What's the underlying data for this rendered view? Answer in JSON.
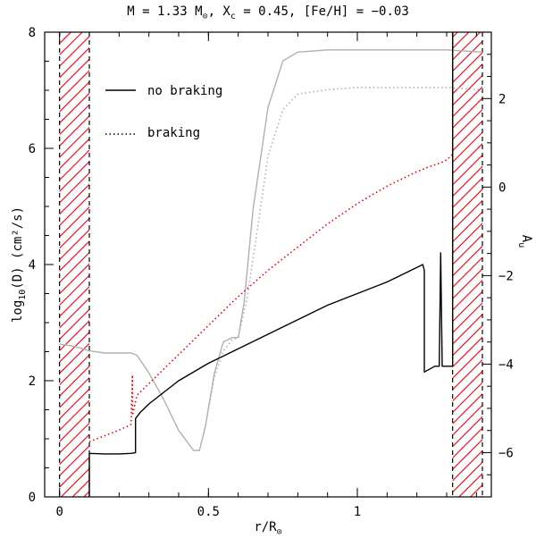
{
  "chart_data": {
    "type": "line",
    "title": {
      "prefix": "M = 1.33 M",
      "mass_sub": "⊙",
      "xc_part": ", X",
      "xc_sub": "c",
      "rest": " = 0.45, [Fe/H] = −0.03"
    },
    "xlabel": {
      "main": "r/R",
      "sub": "⊙"
    },
    "ylabel": {
      "pre": "log",
      "sub": "10",
      "post": "(D) (cm²/s)"
    },
    "y2label": {
      "main": "A",
      "sub": "u"
    },
    "xlim": [
      -0.05,
      1.45
    ],
    "ylim": [
      0,
      8
    ],
    "y2lim": [
      -7,
      3.5
    ],
    "x_ticks": [
      0,
      0.5,
      1
    ],
    "x_tick_labels": [
      "0",
      "0.5",
      "1"
    ],
    "y_ticks": [
      0,
      2,
      4,
      6,
      8
    ],
    "y_tick_labels": [
      "0",
      "2",
      "4",
      "6",
      "8"
    ],
    "y2_ticks": [
      -6,
      -4,
      -2,
      0,
      2
    ],
    "y2_tick_labels": [
      "−6",
      "−4",
      "−2",
      "0",
      "2"
    ],
    "convective_zones": [
      {
        "name": "core",
        "x0": 0.0,
        "x1": 0.1
      },
      {
        "name": "envelope",
        "x0": 1.32,
        "x1": 1.42
      }
    ],
    "legend": [
      {
        "label": "no braking",
        "style": "solid"
      },
      {
        "label": "braking",
        "style": "dotted"
      }
    ],
    "series": [
      {
        "name": "no braking",
        "axis": "left",
        "color": "#000000",
        "style": "solid",
        "x": [
          0.1,
          0.1,
          0.15,
          0.2,
          0.24,
          0.255,
          0.255,
          0.27,
          0.3,
          0.35,
          0.4,
          0.5,
          0.6,
          0.7,
          0.8,
          0.9,
          1.0,
          1.1,
          1.2,
          1.22,
          1.225,
          1.225,
          1.26,
          1.275,
          1.28,
          1.285,
          1.29,
          1.3,
          1.32,
          1.32
        ],
        "y": [
          0.0,
          0.75,
          0.74,
          0.74,
          0.75,
          0.76,
          1.35,
          1.45,
          1.6,
          1.8,
          2.0,
          2.3,
          2.55,
          2.8,
          3.05,
          3.3,
          3.5,
          3.7,
          3.95,
          4.0,
          3.9,
          2.15,
          2.25,
          2.25,
          4.2,
          2.25,
          2.25,
          2.25,
          2.25,
          8.0
        ]
      },
      {
        "name": "braking",
        "axis": "left",
        "color": "#e8000c",
        "style": "dotted",
        "x": [
          0.1,
          0.15,
          0.2,
          0.23,
          0.24,
          0.245,
          0.245,
          0.26,
          0.3,
          0.35,
          0.4,
          0.5,
          0.6,
          0.7,
          0.8,
          0.9,
          1.0,
          1.1,
          1.2,
          1.25,
          1.28,
          1.3,
          1.32,
          1.32
        ],
        "y": [
          0.95,
          1.05,
          1.15,
          1.22,
          1.25,
          2.1,
          1.4,
          1.75,
          1.95,
          2.2,
          2.45,
          2.95,
          3.45,
          3.9,
          4.3,
          4.7,
          5.05,
          5.35,
          5.6,
          5.7,
          5.75,
          5.8,
          5.9,
          8.0
        ]
      },
      {
        "name": "Au no braking",
        "axis": "right",
        "color": "#b0b0b0",
        "style": "solid",
        "x": [
          0.0,
          0.05,
          0.1,
          0.15,
          0.2,
          0.24,
          0.26,
          0.3,
          0.35,
          0.4,
          0.45,
          0.47,
          0.49,
          0.52,
          0.55,
          0.58,
          0.6,
          0.62,
          0.65,
          0.7,
          0.75,
          0.8,
          0.9,
          1.0,
          1.2,
          1.3,
          1.42
        ],
        "y": [
          -3.55,
          -3.6,
          -3.7,
          -3.75,
          -3.75,
          -3.75,
          -3.8,
          -4.2,
          -4.8,
          -5.5,
          -5.95,
          -5.95,
          -5.4,
          -4.2,
          -3.5,
          -3.4,
          -3.4,
          -2.6,
          -0.5,
          1.8,
          2.85,
          3.05,
          3.1,
          3.1,
          3.1,
          3.1,
          3.05
        ]
      },
      {
        "name": "Au braking",
        "axis": "right",
        "color": "#b0b0b0",
        "style": "dotted",
        "x": [
          0.5,
          0.52,
          0.55,
          0.58,
          0.6,
          0.63,
          0.67,
          0.7,
          0.75,
          0.8,
          0.9,
          1.0,
          1.1,
          1.2,
          1.3,
          1.42
        ],
        "y": [
          -5.0,
          -4.3,
          -3.7,
          -3.45,
          -3.4,
          -2.5,
          -0.7,
          0.7,
          1.75,
          2.1,
          2.2,
          2.25,
          2.25,
          2.25,
          2.25,
          2.2
        ]
      }
    ]
  }
}
